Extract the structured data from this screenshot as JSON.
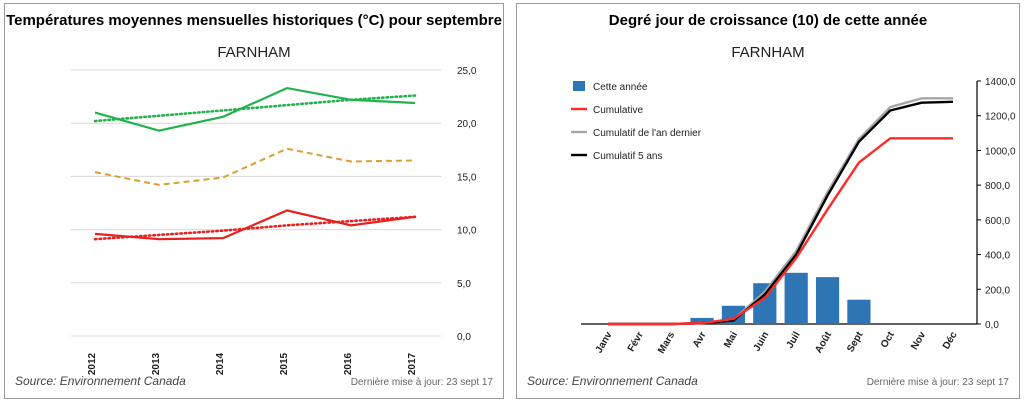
{
  "left_panel": {
    "title": "Températures moyennes mensuelles historiques (°C) pour septembre",
    "subtitle": "FARNHAM",
    "source": "Source: Environnement Canada",
    "updated": "Dernière mise à jour: 23 sept 17"
  },
  "right_panel": {
    "title": "Degré jour de croissance (10) de cette année",
    "subtitle": "FARNHAM",
    "source": "Source: Environnement Canada",
    "updated": "Dernière mise à jour: 23 sept 17"
  },
  "chart_data": [
    {
      "type": "line",
      "categories": [
        "2012",
        "2013",
        "2014",
        "2015",
        "2016",
        "2017"
      ],
      "ylim": [
        0,
        25
      ],
      "yticks": [
        "0,0",
        "5,0",
        "10,0",
        "15,0",
        "20,0",
        "25,0"
      ],
      "grid": true,
      "legend": "none",
      "series": [
        {
          "values": [
            21.0,
            19.3,
            20.6,
            23.3,
            22.2,
            21.9
          ],
          "color": "#22b14c",
          "style": "solid"
        },
        {
          "values": [
            20.2,
            20.7,
            21.2,
            21.7,
            22.2,
            22.6
          ],
          "color": "#22b14c",
          "style": "dotted",
          "trend": true
        },
        {
          "values": [
            15.4,
            14.2,
            14.9,
            17.6,
            16.4,
            16.5
          ],
          "color": "#d9a030",
          "style": "dashed"
        },
        {
          "values": [
            9.6,
            9.1,
            9.2,
            11.8,
            10.4,
            11.2
          ],
          "color": "#e8211f",
          "style": "solid"
        },
        {
          "values": [
            9.1,
            9.5,
            9.9,
            10.4,
            10.8,
            11.2
          ],
          "color": "#e8211f",
          "style": "dotted",
          "trend": true
        }
      ]
    },
    {
      "type": "bar",
      "categories": [
        "Janv",
        "Févr",
        "Mars",
        "Avr",
        "Mai",
        "Juin",
        "Juil",
        "Août",
        "Sept",
        "Oct",
        "Nov",
        "Déc"
      ],
      "ylim": [
        0,
        1400
      ],
      "yticks": [
        "0,0",
        "200,0",
        "400,0",
        "600,0",
        "800,0",
        "1000,0",
        "1200,0",
        "1400,0"
      ],
      "grid": false,
      "legend": "top-left",
      "series": [
        {
          "name": "Cette année",
          "kind": "bar",
          "color": "#2e75b6",
          "values": [
            0,
            0,
            0,
            35,
            105,
            235,
            295,
            270,
            140,
            null,
            null,
            null
          ]
        },
        {
          "name": "Cumulative",
          "kind": "line",
          "color": "#ff2a2a",
          "values": [
            0,
            0,
            0,
            5,
            30,
            150,
            380,
            660,
            930,
            1070,
            1070,
            1070
          ]
        },
        {
          "name": "Cumulatif de l'an dernier",
          "kind": "line",
          "color": "#a6a6a6",
          "values": [
            0,
            0,
            0,
            5,
            25,
            185,
            420,
            760,
            1065,
            1250,
            1300,
            1300
          ]
        },
        {
          "name": "Cumulatif 5 ans",
          "kind": "line",
          "color": "#000000",
          "values": [
            0,
            0,
            0,
            5,
            20,
            170,
            400,
            740,
            1050,
            1230,
            1275,
            1280
          ]
        }
      ]
    }
  ]
}
